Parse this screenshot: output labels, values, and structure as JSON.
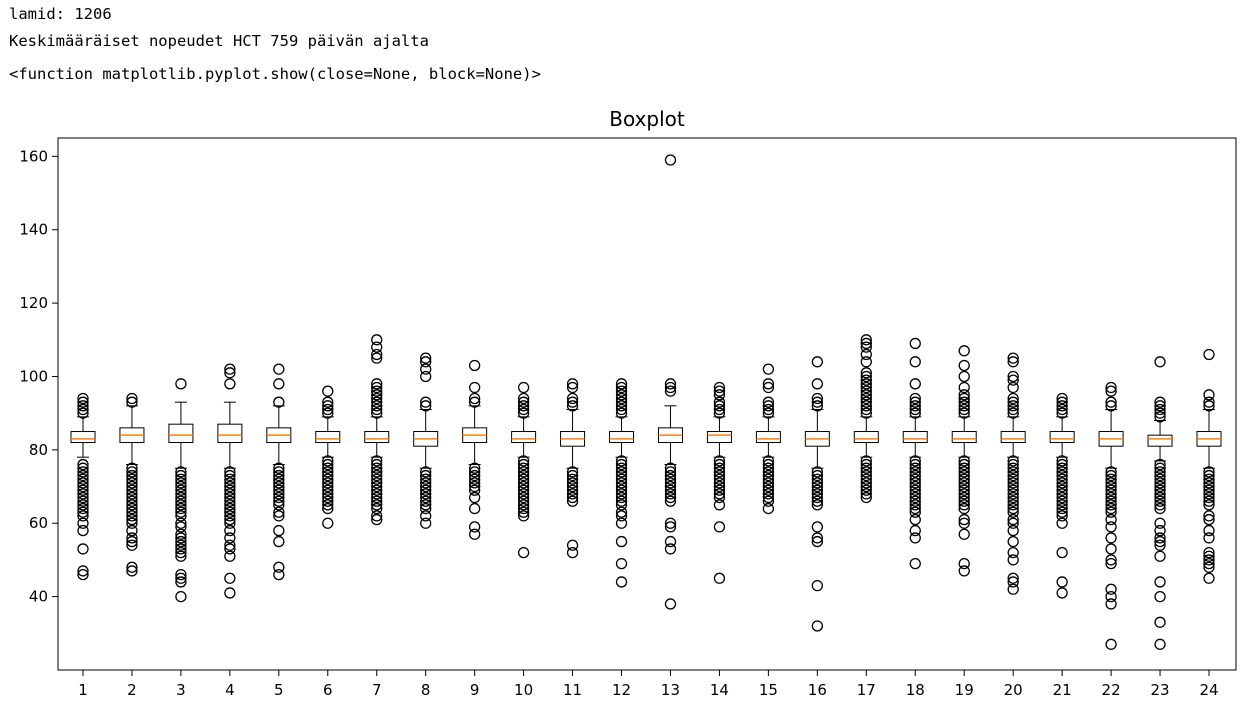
{
  "output": {
    "line1": "lamid: 1206",
    "line2": "Keskimääräiset nopeudet HCT 759 päivän ajalta",
    "line3": "<function matplotlib.pyplot.show(close=None, block=None)>"
  },
  "colors": {
    "box": "#000000",
    "median": "#ff7f0e",
    "flier": "#000000",
    "background": "#ffffff"
  },
  "chart_data": {
    "type": "boxplot",
    "title": "Boxplot",
    "xlabel": "",
    "ylabel": "",
    "categories": [
      "1",
      "2",
      "3",
      "4",
      "5",
      "6",
      "7",
      "8",
      "9",
      "10",
      "11",
      "12",
      "13",
      "14",
      "15",
      "16",
      "17",
      "18",
      "19",
      "20",
      "21",
      "22",
      "23",
      "24"
    ],
    "ylim": [
      20,
      165
    ],
    "yticks": [
      40,
      60,
      80,
      100,
      120,
      140,
      160
    ],
    "grid": false,
    "boxes": [
      {
        "q1": 82,
        "median": 83,
        "q3": 85,
        "whislo": 78,
        "whishi": 89,
        "fliers": [
          94,
          93,
          92,
          91,
          90,
          76,
          75,
          74,
          73,
          72,
          71,
          70,
          69,
          68,
          67,
          66,
          65,
          64,
          63,
          62,
          60,
          58,
          53,
          47,
          46
        ]
      },
      {
        "q1": 82,
        "median": 84,
        "q3": 86,
        "whislo": 76,
        "whishi": 92,
        "fliers": [
          94,
          93,
          75,
          74,
          73,
          72,
          71,
          70,
          69,
          68,
          67,
          66,
          65,
          64,
          63,
          62,
          61,
          60,
          58,
          56,
          55,
          54,
          48,
          47
        ]
      },
      {
        "q1": 82,
        "median": 84,
        "q3": 87,
        "whislo": 75,
        "whishi": 93,
        "fliers": [
          98,
          74,
          73,
          72,
          71,
          70,
          69,
          68,
          67,
          66,
          65,
          64,
          63,
          62,
          60,
          59,
          57,
          56,
          55,
          54,
          53,
          52,
          51,
          46,
          45,
          44,
          40
        ]
      },
      {
        "q1": 82,
        "median": 84,
        "q3": 87,
        "whislo": 75,
        "whishi": 93,
        "fliers": [
          102,
          101,
          98,
          74,
          73,
          72,
          71,
          70,
          69,
          68,
          67,
          66,
          65,
          64,
          63,
          62,
          61,
          60,
          58,
          56,
          54,
          53,
          51,
          45,
          41
        ]
      },
      {
        "q1": 82,
        "median": 84,
        "q3": 86,
        "whislo": 76,
        "whishi": 92,
        "fliers": [
          102,
          98,
          93,
          75,
          74,
          73,
          72,
          71,
          70,
          69,
          68,
          67,
          66,
          65,
          63,
          62,
          58,
          55,
          48,
          46
        ]
      },
      {
        "q1": 82,
        "median": 83,
        "q3": 85,
        "whislo": 78,
        "whishi": 89,
        "fliers": [
          96,
          93,
          92,
          91,
          90,
          77,
          76,
          75,
          74,
          73,
          72,
          71,
          70,
          69,
          68,
          67,
          66,
          65,
          64,
          60
        ]
      },
      {
        "q1": 82,
        "median": 83,
        "q3": 85,
        "whislo": 78,
        "whishi": 89,
        "fliers": [
          110,
          108,
          106,
          105,
          98,
          97,
          96,
          95,
          94,
          93,
          92,
          91,
          90,
          77,
          76,
          75,
          74,
          73,
          72,
          71,
          70,
          69,
          68,
          67,
          66,
          65,
          64,
          62,
          61
        ]
      },
      {
        "q1": 81,
        "median": 83,
        "q3": 85,
        "whislo": 75,
        "whishi": 91,
        "fliers": [
          105,
          104,
          102,
          100,
          93,
          92,
          74,
          73,
          72,
          71,
          70,
          69,
          68,
          67,
          66,
          65,
          64,
          62,
          60
        ]
      },
      {
        "q1": 82,
        "median": 84,
        "q3": 86,
        "whislo": 76,
        "whishi": 92,
        "fliers": [
          103,
          97,
          94,
          93,
          75,
          74,
          73,
          72,
          71,
          70,
          69,
          67,
          64,
          59,
          57
        ]
      },
      {
        "q1": 82,
        "median": 83,
        "q3": 85,
        "whislo": 78,
        "whishi": 89,
        "fliers": [
          97,
          94,
          93,
          92,
          91,
          90,
          77,
          76,
          75,
          74,
          73,
          72,
          71,
          70,
          69,
          68,
          67,
          66,
          65,
          64,
          63,
          62,
          52
        ]
      },
      {
        "q1": 81,
        "median": 83,
        "q3": 85,
        "whislo": 75,
        "whishi": 91,
        "fliers": [
          98,
          97,
          94,
          93,
          92,
          74,
          73,
          72,
          71,
          70,
          69,
          68,
          67,
          66,
          54,
          52
        ]
      },
      {
        "q1": 82,
        "median": 83,
        "q3": 85,
        "whislo": 78,
        "whishi": 89,
        "fliers": [
          98,
          97,
          96,
          95,
          94,
          93,
          92,
          91,
          90,
          77,
          76,
          75,
          74,
          73,
          72,
          71,
          70,
          69,
          68,
          67,
          66,
          65,
          63,
          62,
          60,
          55,
          49,
          44
        ]
      },
      {
        "q1": 82,
        "median": 84,
        "q3": 86,
        "whislo": 76,
        "whishi": 92,
        "fliers": [
          159,
          98,
          97,
          96,
          75,
          74,
          73,
          72,
          71,
          70,
          69,
          68,
          67,
          66,
          60,
          59,
          55,
          53,
          38
        ]
      },
      {
        "q1": 82,
        "median": 84,
        "q3": 85,
        "whislo": 78,
        "whishi": 89,
        "fliers": [
          97,
          96,
          95,
          93,
          92,
          91,
          90,
          77,
          76,
          75,
          74,
          73,
          72,
          71,
          70,
          69,
          68,
          67,
          65,
          59,
          45
        ]
      },
      {
        "q1": 82,
        "median": 83,
        "q3": 85,
        "whislo": 78,
        "whishi": 89,
        "fliers": [
          102,
          98,
          97,
          93,
          92,
          91,
          90,
          77,
          76,
          75,
          74,
          73,
          72,
          71,
          70,
          69,
          68,
          67,
          66,
          64
        ]
      },
      {
        "q1": 81,
        "median": 83,
        "q3": 85,
        "whislo": 75,
        "whishi": 91,
        "fliers": [
          104,
          98,
          94,
          93,
          92,
          74,
          73,
          72,
          71,
          70,
          69,
          68,
          67,
          66,
          65,
          59,
          56,
          55,
          43,
          32
        ]
      },
      {
        "q1": 82,
        "median": 83,
        "q3": 85,
        "whislo": 78,
        "whishi": 89,
        "fliers": [
          110,
          109,
          108,
          106,
          104,
          101,
          100,
          99,
          98,
          97,
          96,
          95,
          94,
          93,
          92,
          91,
          90,
          77,
          76,
          75,
          74,
          73,
          72,
          71,
          70,
          69,
          68,
          67
        ]
      },
      {
        "q1": 82,
        "median": 83,
        "q3": 85,
        "whislo": 78,
        "whishi": 89,
        "fliers": [
          109,
          104,
          98,
          94,
          93,
          92,
          91,
          90,
          77,
          76,
          75,
          74,
          73,
          72,
          71,
          70,
          69,
          68,
          67,
          66,
          65,
          64,
          63,
          61,
          58,
          56,
          49
        ]
      },
      {
        "q1": 82,
        "median": 83,
        "q3": 85,
        "whislo": 78,
        "whishi": 89,
        "fliers": [
          107,
          103,
          100,
          97,
          95,
          94,
          93,
          92,
          91,
          90,
          77,
          76,
          75,
          74,
          73,
          72,
          71,
          70,
          69,
          68,
          67,
          66,
          65,
          64,
          61,
          60,
          57,
          49,
          47
        ]
      },
      {
        "q1": 82,
        "median": 83,
        "q3": 85,
        "whislo": 78,
        "whishi": 89,
        "fliers": [
          105,
          104,
          100,
          99,
          97,
          94,
          93,
          92,
          91,
          90,
          77,
          76,
          75,
          74,
          73,
          72,
          71,
          70,
          69,
          68,
          67,
          66,
          65,
          64,
          63,
          61,
          60,
          58,
          55,
          52,
          50,
          45,
          44,
          42
        ]
      },
      {
        "q1": 82,
        "median": 83,
        "q3": 85,
        "whislo": 78,
        "whishi": 89,
        "fliers": [
          94,
          93,
          92,
          91,
          90,
          77,
          76,
          75,
          74,
          73,
          72,
          71,
          70,
          69,
          68,
          67,
          66,
          65,
          64,
          63,
          62,
          60,
          52,
          44,
          41
        ]
      },
      {
        "q1": 81,
        "median": 83,
        "q3": 85,
        "whislo": 75,
        "whishi": 91,
        "fliers": [
          97,
          96,
          93,
          92,
          74,
          73,
          72,
          71,
          70,
          69,
          68,
          67,
          66,
          65,
          64,
          63,
          61,
          59,
          56,
          53,
          50,
          49,
          42,
          40,
          38,
          27
        ]
      },
      {
        "q1": 81,
        "median": 83,
        "q3": 84,
        "whislo": 77,
        "whishi": 88,
        "fliers": [
          104,
          93,
          92,
          91,
          90,
          89,
          76,
          75,
          74,
          73,
          72,
          71,
          70,
          69,
          68,
          67,
          66,
          65,
          64,
          60,
          58,
          56,
          55,
          54,
          51,
          44,
          40,
          33,
          27
        ]
      },
      {
        "q1": 81,
        "median": 83,
        "q3": 85,
        "whislo": 75,
        "whishi": 91,
        "fliers": [
          106,
          95,
          93,
          92,
          74,
          73,
          72,
          71,
          70,
          69,
          68,
          67,
          66,
          65,
          62,
          61,
          58,
          56,
          52,
          51,
          50,
          49,
          48,
          45
        ]
      }
    ]
  }
}
